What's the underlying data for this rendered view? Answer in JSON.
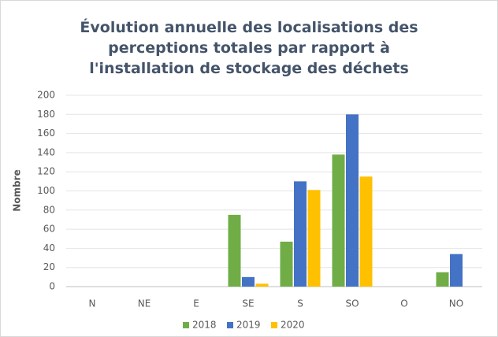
{
  "chart_data": {
    "type": "bar",
    "title": "Évolution annuelle des localisations des perceptions totales par rapport à l'installation de stockage des déchets",
    "y_label": "Nombre",
    "categories": [
      "N",
      "NE",
      "E",
      "SE",
      "S",
      "SO",
      "O",
      "NO"
    ],
    "series": [
      {
        "name": "2018",
        "color": "#70ad47",
        "values": [
          0,
          0,
          0,
          75,
          47,
          138,
          0,
          15
        ]
      },
      {
        "name": "2019",
        "color": "#4472c4",
        "values": [
          0,
          0,
          0,
          10,
          110,
          180,
          0,
          34
        ]
      },
      {
        "name": "2020",
        "color": "#ffc000",
        "values": [
          0,
          0,
          0,
          3,
          101,
          115,
          0,
          0
        ]
      }
    ],
    "ylim": [
      0,
      200
    ],
    "yticks": [
      0,
      20,
      40,
      60,
      80,
      100,
      120,
      140,
      160,
      180,
      200
    ],
    "grid": true,
    "legend": "bottom"
  }
}
